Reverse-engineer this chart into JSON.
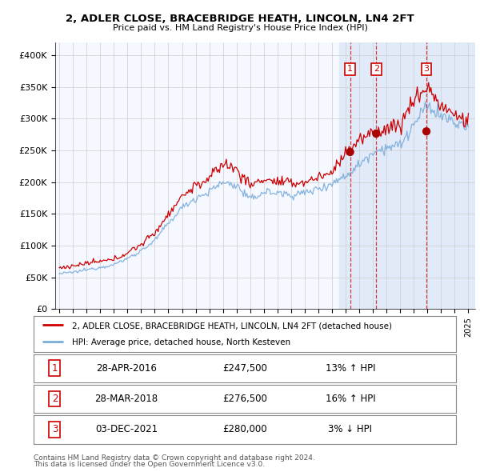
{
  "title": "2, ADLER CLOSE, BRACEBRIDGE HEATH, LINCOLN, LN4 2FT",
  "subtitle": "Price paid vs. HM Land Registry's House Price Index (HPI)",
  "legend_line1": "2, ADLER CLOSE, BRACEBRIDGE HEATH, LINCOLN, LN4 2FT (detached house)",
  "legend_line2": "HPI: Average price, detached house, North Kesteven",
  "footer1": "Contains HM Land Registry data © Crown copyright and database right 2024.",
  "footer2": "This data is licensed under the Open Government Licence v3.0.",
  "sales": [
    {
      "num": 1,
      "date": "28-APR-2016",
      "price": 247500,
      "price_str": "£247,500",
      "pct": "13%",
      "dir": "↑"
    },
    {
      "num": 2,
      "date": "28-MAR-2018",
      "price": 276500,
      "price_str": "£276,500",
      "pct": "16%",
      "dir": "↑"
    },
    {
      "num": 3,
      "date": "03-DEC-2021",
      "price": 280000,
      "price_str": "£280,000",
      "pct": "3%",
      "dir": "↓"
    }
  ],
  "ylim": [
    0,
    420000
  ],
  "yticks": [
    0,
    50000,
    100000,
    150000,
    200000,
    250000,
    300000,
    350000,
    400000
  ],
  "ytick_labels": [
    "£0",
    "£50K",
    "£100K",
    "£150K",
    "£200K",
    "£250K",
    "£300K",
    "£350K",
    "£400K"
  ],
  "xlim_start": 1994.7,
  "xlim_end": 2025.5,
  "background_color": "#ffffff",
  "plot_bg_color": "#f5f8ff",
  "highlight_bg_color": "#e0eaf8",
  "grid_color": "#cccccc",
  "red_line_color": "#cc0000",
  "blue_line_color": "#7aacdc",
  "sale_dot_color": "#aa0000",
  "vline_color": "#cc0000",
  "box_color": "#cc0000",
  "hpi_key_years": [
    1995,
    1996,
    1997,
    1998,
    1999,
    2000,
    2001,
    2002,
    2003,
    2004,
    2005,
    2006,
    2007,
    2008,
    2009,
    2010,
    2011,
    2012,
    2013,
    2014,
    2015,
    2016,
    2017,
    2018,
    2019,
    2020,
    2021,
    2022,
    2023,
    2024,
    2025
  ],
  "hpi_key_vals": [
    56000,
    58000,
    62000,
    66000,
    70000,
    80000,
    92000,
    108000,
    135000,
    160000,
    175000,
    185000,
    200000,
    195000,
    172000,
    185000,
    183000,
    180000,
    183000,
    190000,
    198000,
    210000,
    228000,
    248000,
    255000,
    258000,
    290000,
    320000,
    305000,
    293000,
    285000
  ],
  "prop_key_years": [
    1995,
    1996,
    1997,
    1998,
    1999,
    2000,
    2001,
    2002,
    2003,
    2004,
    2005,
    2006,
    2007,
    2008,
    2009,
    2010,
    2011,
    2012,
    2013,
    2014,
    2015,
    2016,
    2017,
    2018,
    2019,
    2020,
    2021,
    2022,
    2023,
    2024,
    2025
  ],
  "prop_key_vals": [
    65000,
    68000,
    72000,
    75000,
    78000,
    89000,
    102000,
    120000,
    150000,
    178000,
    195000,
    205000,
    230000,
    220000,
    195000,
    205000,
    200000,
    198000,
    200000,
    208000,
    215000,
    248000,
    265000,
    278000,
    285000,
    290000,
    330000,
    350000,
    320000,
    305000,
    295000
  ],
  "highlight_start": 2015.5,
  "highlight_end": 2025.6
}
